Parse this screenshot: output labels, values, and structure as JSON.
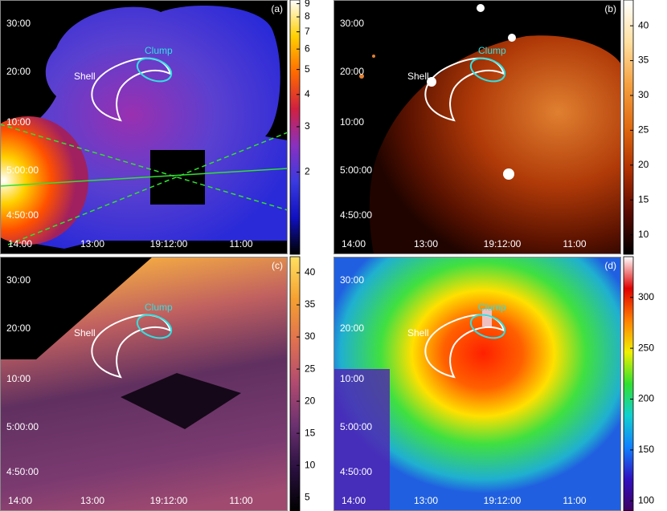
{
  "chart_data": [
    {
      "type": "image",
      "label": "(a)",
      "annotations": [
        "Shell",
        "Clump"
      ],
      "xtick_labels": [
        "14:00",
        "13:00",
        "19:12:00",
        "11:00"
      ],
      "ytick_labels": [
        "30:00",
        "20:00",
        "10:00",
        "5:00:00",
        "4:50:00"
      ],
      "colorbar": {
        "lim": [
          0.96,
          9.3
        ],
        "log": true,
        "ticks": [
          2,
          3,
          4,
          5,
          6,
          7,
          8,
          9
        ],
        "colors": [
          "#000000",
          "#1010c0",
          "#3a3ae0",
          "#8a30c0",
          "#d02040",
          "#ff6a00",
          "#ffd000",
          "#ffffff"
        ]
      }
    },
    {
      "type": "image",
      "label": "(b)",
      "annotations": [
        "Shell",
        "Clump"
      ],
      "xtick_labels": [
        "14:00",
        "13:00",
        "19:12:00",
        "11:00"
      ],
      "ytick_labels": [
        "30:00",
        "20:00",
        "10:00",
        "5:00:00",
        "4:50:00"
      ],
      "colorbar": {
        "lim": [
          7.2,
          43.7
        ],
        "log": false,
        "ticks": [
          10,
          15,
          20,
          25,
          30,
          35,
          40
        ],
        "colors": [
          "#000000",
          "#5a0a00",
          "#b03000",
          "#e06a10",
          "#f5a040",
          "#ffe0a0",
          "#ffffff"
        ]
      }
    },
    {
      "type": "image",
      "label": "(c)",
      "annotations": [
        "Shell",
        "Clump"
      ],
      "xtick_labels": [
        "14:00",
        "13:00",
        "19:12:00",
        "11:00"
      ],
      "ytick_labels": [
        "30:00",
        "20:00",
        "10:00",
        "5:00:00",
        "4:50:00"
      ],
      "colorbar": {
        "lim": [
          2.9,
          42.5
        ],
        "log": false,
        "ticks": [
          5,
          10,
          15,
          20,
          25,
          30,
          35,
          40
        ],
        "colors": [
          "#000000",
          "#2a1040",
          "#6a3070",
          "#b04a70",
          "#e07050",
          "#f5a030",
          "#ffe060"
        ]
      }
    },
    {
      "type": "image",
      "label": "(d)",
      "annotations": [
        "Shell",
        "Clump"
      ],
      "xtick_labels": [
        "14:00",
        "13:00",
        "19:12:00",
        "11:00"
      ],
      "ytick_labels": [
        "30:00",
        "20:00",
        "10:00",
        "5:00:00",
        "4:50:00"
      ],
      "colorbar": {
        "lim": [
          90,
          340
        ],
        "log": false,
        "ticks": [
          100,
          150,
          200,
          250,
          300
        ],
        "colors": [
          "#400060",
          "#3010c0",
          "#1080ff",
          "#10d0d0",
          "#30e030",
          "#f0f000",
          "#ff8000",
          "#e00000",
          "#ffffff"
        ]
      }
    }
  ]
}
